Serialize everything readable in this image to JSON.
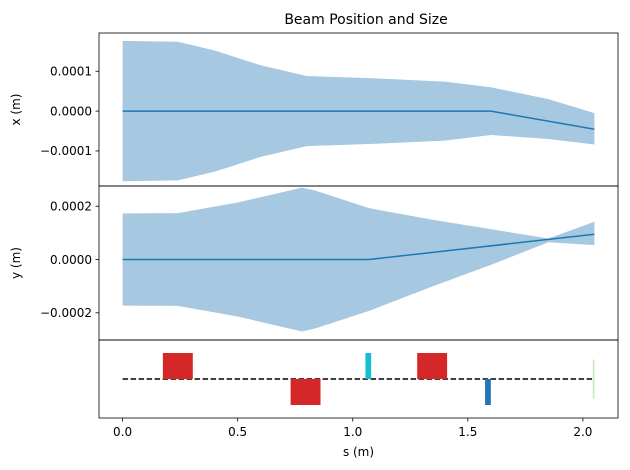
{
  "chart_data": {
    "title": "Beam Position and Size",
    "xlabel": "s (m)",
    "xlim": [
      -0.1025,
      2.1525
    ],
    "xticks": [
      0.0,
      0.5,
      1.0,
      1.5,
      2.0
    ],
    "xtick_labels": [
      "0.0",
      "0.5",
      "1.0",
      "1.5",
      "2.0"
    ],
    "panels": [
      {
        "type": "line",
        "ylabel": "x (m)",
        "ylim": [
          -0.000188,
          0.000196
        ],
        "yticks": [
          -0.0001,
          0.0,
          0.0001
        ],
        "ytick_labels": [
          "−0.0001",
          "0.0000",
          "0.0001"
        ],
        "series": [
          {
            "kind": "band",
            "color": "#a6c8e1",
            "x": [
              0.0,
              0.24,
              0.4,
              0.6,
              0.8,
              1.1,
              1.4,
              1.6,
              1.85,
              2.05
            ],
            "upper": [
              0.000176,
              0.000174,
              0.000152,
              0.000115,
              8.8e-05,
              8.2e-05,
              7.4e-05,
              6e-05,
              3e-05,
              -5e-06
            ],
            "lower": [
              -0.000176,
              -0.000174,
              -0.000152,
              -0.000115,
              -8.8e-05,
              -8.2e-05,
              -7.4e-05,
              -6e-05,
              -7e-05,
              -8.4e-05
            ]
          },
          {
            "kind": "line",
            "color": "#1f77b4",
            "x": [
              0.0,
              1.6,
              2.05
            ],
            "y": [
              0.0,
              0.0,
              -4.55e-05
            ]
          }
        ]
      },
      {
        "type": "line",
        "ylabel": "y (m)",
        "ylim": [
          -0.000302,
          0.000276
        ],
        "yticks": [
          -0.0002,
          0.0,
          0.0002
        ],
        "ytick_labels": [
          "−0.0002",
          "0.0000",
          "0.0002"
        ],
        "series": [
          {
            "kind": "band",
            "color": "#a6c8e1",
            "x": [
              0.0,
              0.24,
              0.5,
              0.78,
              0.84,
              1.07,
              1.35,
              1.6,
              1.85,
              2.05
            ],
            "upper": [
              0.000173,
              0.000174,
              0.000214,
              0.00027,
              0.000258,
              0.000193,
              0.000149,
              0.000114,
              7.9e-05,
              0.000142
            ],
            "lower": [
              -0.000173,
              -0.000174,
              -0.000214,
              -0.00027,
              -0.000258,
              -0.000193,
              -0.0001,
              -2e-05,
              6.5e-05,
              5.4e-05
            ]
          },
          {
            "kind": "line",
            "color": "#1f77b4",
            "x": [
              0.0,
              1.07,
              2.05
            ],
            "y": [
              0.0,
              0.0,
              9.5e-05
            ]
          }
        ]
      },
      {
        "type": "layout",
        "ylim": [
          -1.5,
          1.5
        ],
        "baseline": {
          "color": "#000000",
          "dash": true,
          "y": 0
        },
        "elements": [
          {
            "name": "quadrupole-1",
            "s_start": 0.175,
            "s_end": 0.305,
            "y0": 0,
            "y1": 1,
            "color": "#d62728"
          },
          {
            "name": "quadrupole-2",
            "s_start": 0.73,
            "s_end": 0.86,
            "y0": -1,
            "y1": 0,
            "color": "#d62728"
          },
          {
            "name": "marker-1",
            "s_start": 1.055,
            "s_end": 1.08,
            "y0": 0,
            "y1": 1,
            "color": "#17becf"
          },
          {
            "name": "quadrupole-3",
            "s_start": 1.28,
            "s_end": 1.41,
            "y0": 0,
            "y1": 1,
            "color": "#d62728"
          },
          {
            "name": "marker-2",
            "s_start": 1.575,
            "s_end": 1.6,
            "y0": -1,
            "y1": 0,
            "color": "#1f77b4"
          },
          {
            "name": "marker-3",
            "s_start": 2.043,
            "s_end": 2.05,
            "y0": -0.75,
            "y1": 0.75,
            "color": "#c7e9c0"
          }
        ]
      }
    ]
  }
}
